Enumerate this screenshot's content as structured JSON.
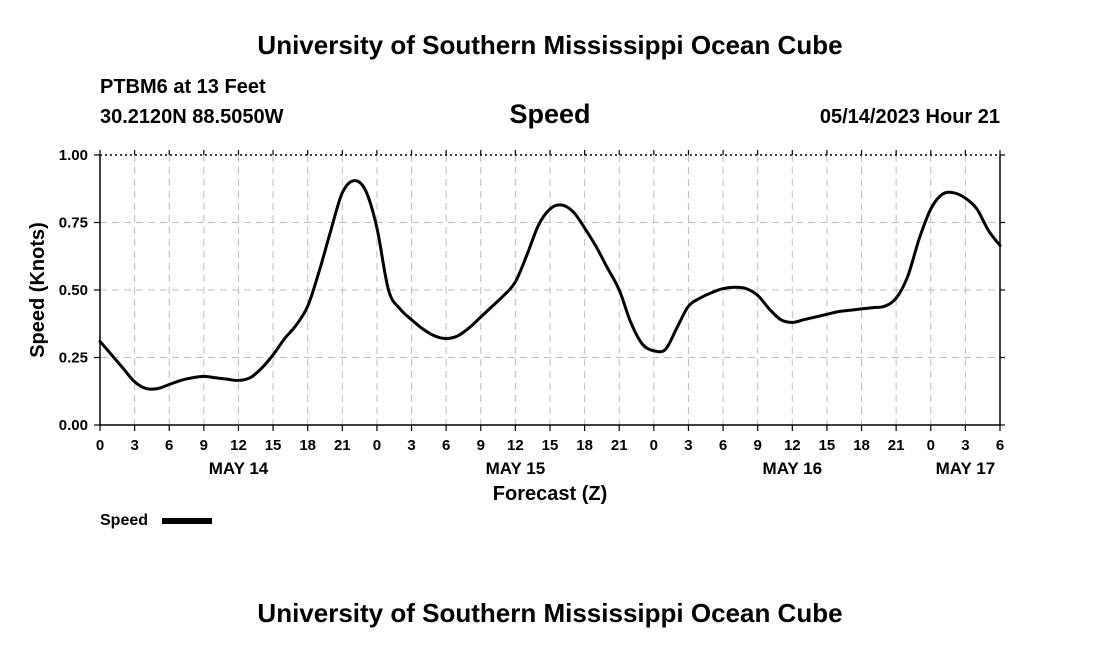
{
  "header": {
    "title": "University of Southern Mississippi Ocean Cube",
    "station": "PTBM6 at 13 Feet",
    "coordinates": "30.2120N  88.5050W",
    "plot_title": "Speed",
    "datetime": "05/14/2023 Hour 21"
  },
  "footer": {
    "title": "University of Southern Mississippi Ocean Cube"
  },
  "chart_data": {
    "type": "line",
    "title": "Speed",
    "xlabel": "Forecast (Z)",
    "ylabel": "Speed (Knots)",
    "ylim": [
      0,
      1
    ],
    "xlim": [
      0,
      78
    ],
    "x_unit": "hours since 00Z May 14",
    "yticks": [
      "0.00",
      "0.25",
      "0.50",
      "0.75",
      "1.00"
    ],
    "xticks": [
      "0",
      "3",
      "6",
      "9",
      "12",
      "15",
      "18",
      "21",
      "0",
      "3",
      "6",
      "9",
      "12",
      "15",
      "18",
      "21",
      "0",
      "3",
      "6",
      "9",
      "12",
      "15",
      "18",
      "21",
      "0",
      "3",
      "6"
    ],
    "date_labels": [
      {
        "label": "MAY 14",
        "hour": 12
      },
      {
        "label": "MAY 15",
        "hour": 36
      },
      {
        "label": "MAY 16",
        "hour": 60
      },
      {
        "label": "MAY 17",
        "hour": 75
      }
    ],
    "grid": true,
    "legend": {
      "label": "Speed",
      "position": "bottom-left"
    },
    "series": [
      {
        "name": "Speed",
        "color": "#000000",
        "x": [
          0,
          1,
          2,
          3,
          4,
          5,
          6,
          7,
          8,
          9,
          10,
          11,
          12,
          13,
          14,
          15,
          16,
          17,
          18,
          19,
          20,
          21,
          22,
          23,
          24,
          25,
          26,
          27,
          28,
          29,
          30,
          31,
          32,
          33,
          34,
          35,
          36,
          37,
          38,
          39,
          40,
          41,
          42,
          43,
          44,
          45,
          46,
          47,
          48,
          49,
          50,
          51,
          52,
          53,
          54,
          55,
          56,
          57,
          58,
          59,
          60,
          61,
          62,
          63,
          64,
          65,
          66,
          67,
          68,
          69,
          70,
          71,
          72,
          73,
          74,
          75,
          76,
          77,
          78
        ],
        "values": [
          0.31,
          0.26,
          0.21,
          0.16,
          0.135,
          0.135,
          0.15,
          0.165,
          0.175,
          0.18,
          0.175,
          0.17,
          0.165,
          0.175,
          0.21,
          0.26,
          0.32,
          0.37,
          0.44,
          0.57,
          0.72,
          0.86,
          0.905,
          0.87,
          0.73,
          0.5,
          0.43,
          0.39,
          0.355,
          0.33,
          0.32,
          0.33,
          0.36,
          0.4,
          0.44,
          0.48,
          0.53,
          0.63,
          0.74,
          0.8,
          0.815,
          0.79,
          0.73,
          0.66,
          0.58,
          0.5,
          0.38,
          0.3,
          0.275,
          0.28,
          0.36,
          0.44,
          0.47,
          0.49,
          0.505,
          0.51,
          0.505,
          0.48,
          0.43,
          0.39,
          0.38,
          0.39,
          0.4,
          0.41,
          0.42,
          0.425,
          0.43,
          0.435,
          0.44,
          0.47,
          0.55,
          0.69,
          0.8,
          0.855,
          0.86,
          0.84,
          0.8,
          0.72,
          0.665
        ]
      }
    ]
  }
}
